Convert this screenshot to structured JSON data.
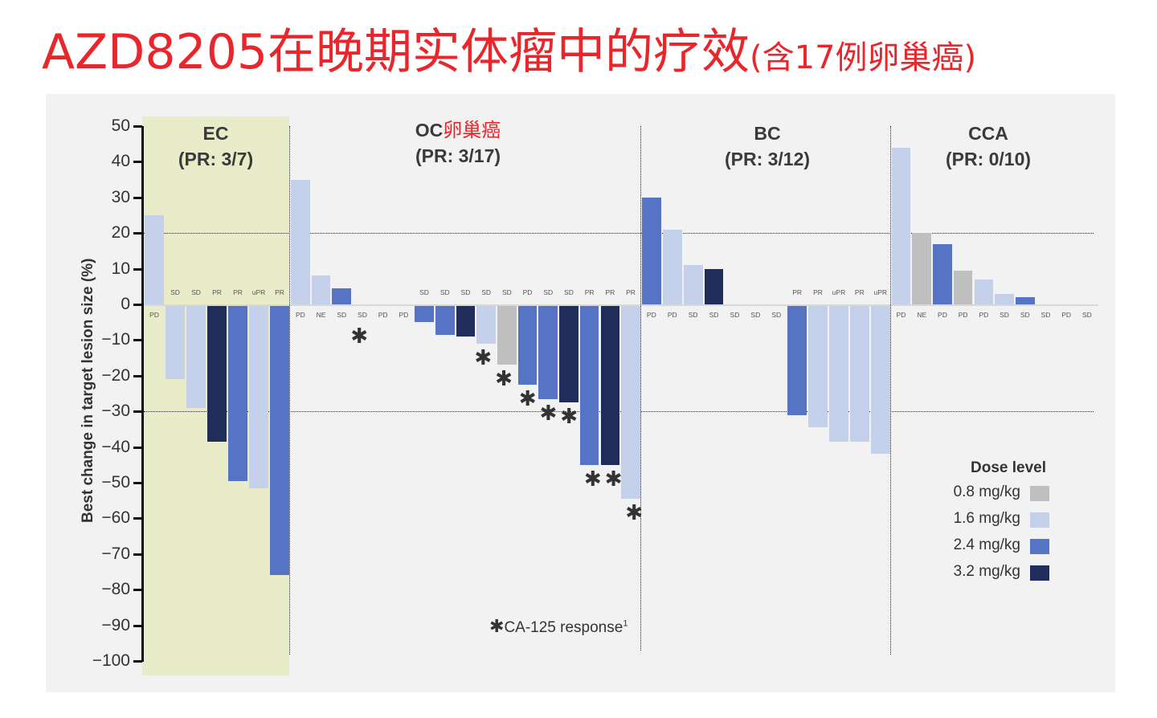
{
  "title": {
    "main": "AZD8205在晚期实体瘤中的疗效",
    "sub": "(含17例卵巢癌)"
  },
  "dose_colors": {
    "0.8": "#bfbfbf",
    "1.6": "#c5d1ea",
    "2.4": "#5773c3",
    "3.2": "#202d5a"
  },
  "panels": [
    {
      "name": "EC",
      "cn": "",
      "pr": "(PR: 3/7)"
    },
    {
      "name": "OC",
      "cn": "卵巢癌",
      "pr": "(PR: 3/17)"
    },
    {
      "name": "BC",
      "cn": "",
      "pr": "(PR: 3/12)"
    },
    {
      "name": "CCA",
      "cn": "",
      "pr": "(PR: 0/10)"
    }
  ],
  "legend": {
    "title": "Dose level",
    "items": [
      {
        "label": "0.8 mg/kg",
        "color": "#bfbfbf"
      },
      {
        "label": "1.6 mg/kg",
        "color": "#c5d1ea"
      },
      {
        "label": "2.4 mg/kg",
        "color": "#5773c3"
      },
      {
        "label": "3.2 mg/kg",
        "color": "#202d5a"
      }
    ]
  },
  "footnote": {
    "symbol": "✱",
    "text": "CA-125 response",
    "sup": "1"
  },
  "chart_data": {
    "type": "bar",
    "title": "AZD8205在晚期实体瘤中的疗效(含17例卵巢癌)",
    "xlabel": "",
    "ylabel": "Best change in target lesion size (%)",
    "ylim": [
      -100,
      50
    ],
    "yticks": [
      50,
      40,
      30,
      20,
      10,
      0,
      -10,
      -20,
      -30,
      -40,
      -50,
      -60,
      -70,
      -80,
      -90,
      -100
    ],
    "reference_lines": [
      20,
      -30
    ],
    "legend_position": "lower right",
    "grid": false,
    "groups": [
      {
        "name": "EC",
        "pr": "3/7",
        "bars": [
          {
            "value": 25,
            "response": "PD",
            "dose": "1.6",
            "ca125": false
          },
          {
            "value": -21,
            "response": "SD",
            "dose": "1.6",
            "ca125": false
          },
          {
            "value": -29,
            "response": "SD",
            "dose": "1.6",
            "ca125": false
          },
          {
            "value": -38.5,
            "response": "PR",
            "dose": "3.2",
            "ca125": false
          },
          {
            "value": -49.5,
            "response": "PR",
            "dose": "2.4",
            "ca125": false
          },
          {
            "value": -51.5,
            "response": "uPR",
            "dose": "1.6",
            "ca125": false
          },
          {
            "value": -76,
            "response": "PR",
            "dose": "2.4",
            "ca125": false
          }
        ]
      },
      {
        "name": "OC",
        "pr": "3/17",
        "bars": [
          {
            "value": 35,
            "response": "PD",
            "dose": "1.6",
            "ca125": false
          },
          {
            "value": 8,
            "response": "NE",
            "dose": "1.6",
            "ca125": false
          },
          {
            "value": 4.5,
            "response": "SD",
            "dose": "2.4",
            "ca125": false
          },
          {
            "value": 0,
            "response": "SD",
            "dose": "",
            "ca125": true
          },
          {
            "value": 0,
            "response": "PD",
            "dose": "",
            "ca125": false
          },
          {
            "value": 0,
            "response": "PD",
            "dose": "",
            "ca125": false
          },
          {
            "value": -5,
            "response": "SD",
            "dose": "2.4",
            "ca125": false
          },
          {
            "value": -8.5,
            "response": "SD",
            "dose": "2.4",
            "ca125": false
          },
          {
            "value": -9,
            "response": "SD",
            "dose": "3.2",
            "ca125": false
          },
          {
            "value": -11,
            "response": "SD",
            "dose": "1.6",
            "ca125": true
          },
          {
            "value": -17,
            "response": "SD",
            "dose": "0.8",
            "ca125": true
          },
          {
            "value": -22.5,
            "response": "PD",
            "dose": "2.4",
            "ca125": true
          },
          {
            "value": -26.5,
            "response": "SD",
            "dose": "2.4",
            "ca125": true
          },
          {
            "value": -27.5,
            "response": "SD",
            "dose": "3.2",
            "ca125": true
          },
          {
            "value": -45,
            "response": "PR",
            "dose": "2.4",
            "ca125": true
          },
          {
            "value": -45,
            "response": "PR",
            "dose": "3.2",
            "ca125": true
          },
          {
            "value": -54.5,
            "response": "PR",
            "dose": "1.6",
            "ca125": true
          }
        ]
      },
      {
        "name": "BC",
        "pr": "3/12",
        "bars": [
          {
            "value": 30,
            "response": "PD",
            "dose": "2.4",
            "ca125": false
          },
          {
            "value": 21,
            "response": "PD",
            "dose": "1.6",
            "ca125": false
          },
          {
            "value": 11,
            "response": "SD",
            "dose": "1.6",
            "ca125": false
          },
          {
            "value": 10,
            "response": "SD",
            "dose": "3.2",
            "ca125": false
          },
          {
            "value": 0,
            "response": "SD",
            "dose": "",
            "ca125": false
          },
          {
            "value": 0,
            "response": "SD",
            "dose": "",
            "ca125": false
          },
          {
            "value": 0,
            "response": "SD",
            "dose": "",
            "ca125": false
          },
          {
            "value": -31,
            "response": "PR",
            "dose": "2.4",
            "ca125": false
          },
          {
            "value": -34.5,
            "response": "PR",
            "dose": "1.6",
            "ca125": false
          },
          {
            "value": -38.5,
            "response": "uPR",
            "dose": "1.6",
            "ca125": false
          },
          {
            "value": -38.5,
            "response": "PR",
            "dose": "1.6",
            "ca125": false
          },
          {
            "value": -42,
            "response": "uPR",
            "dose": "1.6",
            "ca125": false
          }
        ]
      },
      {
        "name": "CCA",
        "pr": "0/10",
        "bars": [
          {
            "value": 44,
            "response": "PD",
            "dose": "1.6",
            "ca125": false
          },
          {
            "value": 20,
            "response": "NE",
            "dose": "0.8",
            "ca125": false
          },
          {
            "value": 17,
            "response": "PD",
            "dose": "2.4",
            "ca125": false
          },
          {
            "value": 9.5,
            "response": "PD",
            "dose": "0.8",
            "ca125": false
          },
          {
            "value": 7,
            "response": "PD",
            "dose": "1.6",
            "ca125": false
          },
          {
            "value": 3,
            "response": "SD",
            "dose": "1.6",
            "ca125": false
          },
          {
            "value": 2,
            "response": "SD",
            "dose": "2.4",
            "ca125": false
          },
          {
            "value": 0,
            "response": "SD",
            "dose": "",
            "ca125": false
          },
          {
            "value": 0,
            "response": "PD",
            "dose": "",
            "ca125": false
          },
          {
            "value": 0,
            "response": "SD",
            "dose": "",
            "ca125": false
          }
        ]
      }
    ]
  }
}
